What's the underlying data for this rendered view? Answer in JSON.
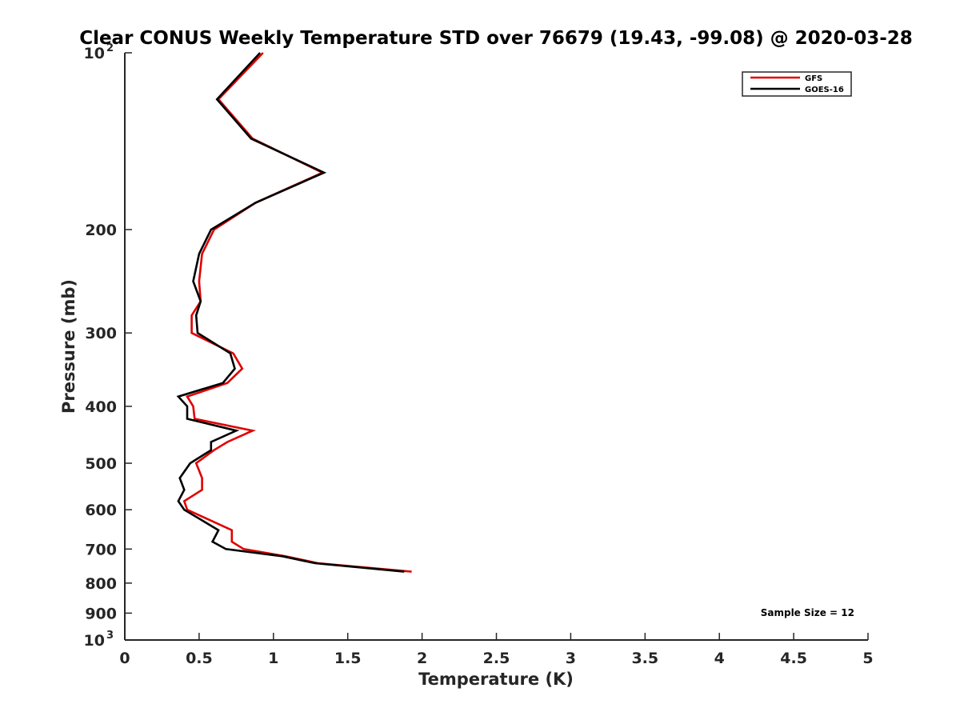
{
  "chart_data": {
    "type": "line",
    "title": "Clear CONUS Weekly Temperature STD over 76679 (19.43, -99.08) @ 2020-03-28",
    "xlabel": "Temperature (K)",
    "ylabel": "Pressure (mb)",
    "xlim": [
      0,
      5
    ],
    "ylim": [
      100,
      1000
    ],
    "y_scale": "log",
    "y_reversed": true,
    "grid": false,
    "legend_position": "top-right",
    "x_ticks": [
      "0",
      "0.5",
      "1",
      "1.5",
      "2",
      "2.5",
      "3",
      "3.5",
      "4",
      "4.5",
      "5"
    ],
    "y_ticks": [
      {
        "value": 100,
        "label": "10",
        "sup": "2"
      },
      {
        "value": 200,
        "label": "200",
        "sup": ""
      },
      {
        "value": 300,
        "label": "300",
        "sup": ""
      },
      {
        "value": 400,
        "label": "400",
        "sup": ""
      },
      {
        "value": 500,
        "label": "500",
        "sup": ""
      },
      {
        "value": 600,
        "label": "600",
        "sup": ""
      },
      {
        "value": 700,
        "label": "700",
        "sup": ""
      },
      {
        "value": 800,
        "label": "800",
        "sup": ""
      },
      {
        "value": 900,
        "label": "900",
        "sup": ""
      },
      {
        "value": 1000,
        "label": "10",
        "sup": "3"
      }
    ],
    "annotation": "Sample Size = 12",
    "series": [
      {
        "name": "GFS",
        "color": "#e00000",
        "points": [
          {
            "x": 0.93,
            "y": 100
          },
          {
            "x": 0.63,
            "y": 120
          },
          {
            "x": 0.86,
            "y": 140
          },
          {
            "x": 1.33,
            "y": 160
          },
          {
            "x": 0.88,
            "y": 180
          },
          {
            "x": 0.6,
            "y": 200
          },
          {
            "x": 0.52,
            "y": 220
          },
          {
            "x": 0.5,
            "y": 245
          },
          {
            "x": 0.51,
            "y": 265
          },
          {
            "x": 0.45,
            "y": 280
          },
          {
            "x": 0.45,
            "y": 300
          },
          {
            "x": 0.73,
            "y": 325
          },
          {
            "x": 0.79,
            "y": 345
          },
          {
            "x": 0.69,
            "y": 365
          },
          {
            "x": 0.42,
            "y": 385
          },
          {
            "x": 0.46,
            "y": 400
          },
          {
            "x": 0.47,
            "y": 420
          },
          {
            "x": 0.86,
            "y": 440
          },
          {
            "x": 0.69,
            "y": 460
          },
          {
            "x": 0.6,
            "y": 475
          },
          {
            "x": 0.48,
            "y": 500
          },
          {
            "x": 0.52,
            "y": 530
          },
          {
            "x": 0.52,
            "y": 555
          },
          {
            "x": 0.4,
            "y": 580
          },
          {
            "x": 0.42,
            "y": 600
          },
          {
            "x": 0.72,
            "y": 650
          },
          {
            "x": 0.72,
            "y": 680
          },
          {
            "x": 0.8,
            "y": 700
          },
          {
            "x": 1.08,
            "y": 720
          },
          {
            "x": 1.3,
            "y": 740
          },
          {
            "x": 1.93,
            "y": 765
          }
        ]
      },
      {
        "name": "GOES-16",
        "color": "#000000",
        "points": [
          {
            "x": 0.91,
            "y": 100
          },
          {
            "x": 0.62,
            "y": 120
          },
          {
            "x": 0.85,
            "y": 140
          },
          {
            "x": 1.34,
            "y": 160
          },
          {
            "x": 0.88,
            "y": 180
          },
          {
            "x": 0.58,
            "y": 200
          },
          {
            "x": 0.5,
            "y": 220
          },
          {
            "x": 0.46,
            "y": 245
          },
          {
            "x": 0.51,
            "y": 265
          },
          {
            "x": 0.48,
            "y": 280
          },
          {
            "x": 0.49,
            "y": 300
          },
          {
            "x": 0.71,
            "y": 325
          },
          {
            "x": 0.74,
            "y": 345
          },
          {
            "x": 0.66,
            "y": 365
          },
          {
            "x": 0.36,
            "y": 385
          },
          {
            "x": 0.42,
            "y": 400
          },
          {
            "x": 0.42,
            "y": 420
          },
          {
            "x": 0.75,
            "y": 440
          },
          {
            "x": 0.58,
            "y": 460
          },
          {
            "x": 0.58,
            "y": 475
          },
          {
            "x": 0.44,
            "y": 500
          },
          {
            "x": 0.37,
            "y": 530
          },
          {
            "x": 0.4,
            "y": 555
          },
          {
            "x": 0.36,
            "y": 580
          },
          {
            "x": 0.4,
            "y": 600
          },
          {
            "x": 0.63,
            "y": 650
          },
          {
            "x": 0.59,
            "y": 680
          },
          {
            "x": 0.68,
            "y": 700
          },
          {
            "x": 1.06,
            "y": 720
          },
          {
            "x": 1.28,
            "y": 740
          },
          {
            "x": 1.88,
            "y": 765
          }
        ]
      }
    ]
  }
}
